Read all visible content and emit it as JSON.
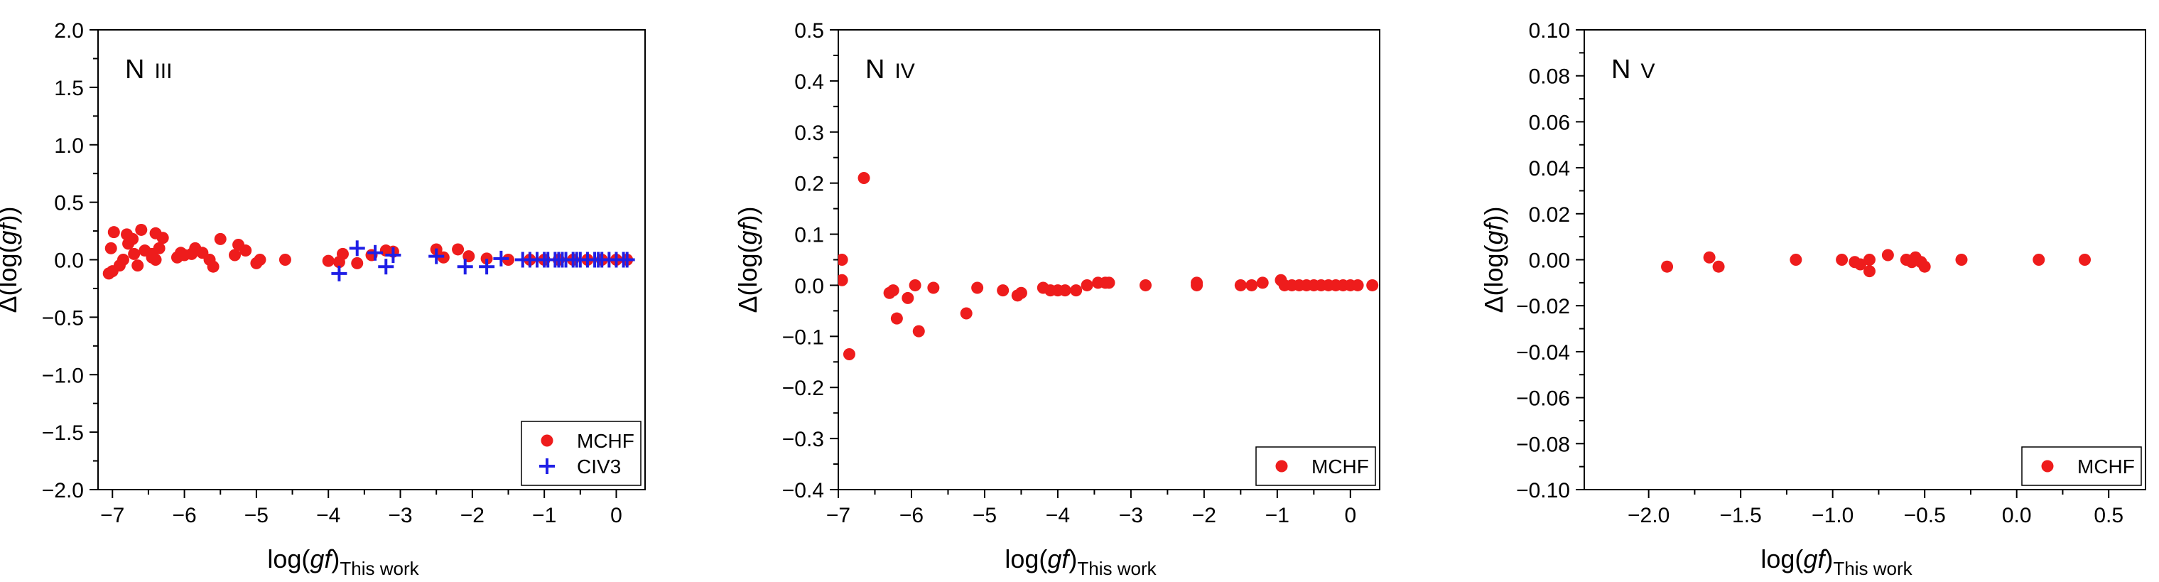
{
  "figure": {
    "ylabel_prefix": "Δ(log(",
    "ylabel_italic": "gf",
    "ylabel_suffix": "))",
    "xlabel_prefix": "log(",
    "xlabel_italic": "gf",
    "xlabel_suffix": ")",
    "xlabel_sub": "This work"
  },
  "chart_data": [
    {
      "type": "scatter",
      "title_main": "N",
      "title_sub": "III",
      "xlim": [
        -7.2,
        0.4
      ],
      "ylim": [
        -2.0,
        2.0
      ],
      "xticks": [
        -7,
        -6,
        -5,
        -4,
        -3,
        -2,
        -1,
        0
      ],
      "xtick_labels": [
        "−7",
        "−6",
        "−5",
        "−4",
        "−3",
        "−2",
        "−1",
        "0"
      ],
      "yticks": [
        -2.0,
        -1.5,
        -1.0,
        -0.5,
        0.0,
        0.5,
        1.0,
        1.5,
        2.0
      ],
      "ytick_labels": [
        "−2.0",
        "−1.5",
        "−1.0",
        "−0.5",
        "0.0",
        "0.5",
        "1.0",
        "1.5",
        "2.0"
      ],
      "legend_position": "bottom-right",
      "colors": {
        "MCHF": "#ee1c1c",
        "CIV3": "#1f1fe6"
      },
      "series": [
        {
          "name": "MCHF",
          "marker": "circle",
          "points": [
            [
              -7.05,
              -0.12
            ],
            [
              -7.0,
              -0.1
            ],
            [
              -7.02,
              0.1
            ],
            [
              -6.98,
              0.24
            ],
            [
              -6.9,
              -0.05
            ],
            [
              -6.85,
              0.0
            ],
            [
              -6.8,
              0.22
            ],
            [
              -6.78,
              0.14
            ],
            [
              -6.72,
              0.18
            ],
            [
              -6.7,
              0.05
            ],
            [
              -6.65,
              -0.05
            ],
            [
              -6.6,
              0.26
            ],
            [
              -6.55,
              0.08
            ],
            [
              -6.45,
              0.02
            ],
            [
              -6.45,
              0.05
            ],
            [
              -6.4,
              0.23
            ],
            [
              -6.4,
              0.0
            ],
            [
              -6.35,
              0.1
            ],
            [
              -6.3,
              0.19
            ],
            [
              -6.1,
              0.02
            ],
            [
              -6.05,
              0.06
            ],
            [
              -6.0,
              0.04
            ],
            [
              -5.9,
              0.05
            ],
            [
              -5.85,
              0.1
            ],
            [
              -5.75,
              0.06
            ],
            [
              -5.65,
              0.0
            ],
            [
              -5.6,
              -0.06
            ],
            [
              -5.5,
              0.18
            ],
            [
              -5.3,
              0.04
            ],
            [
              -5.25,
              0.13
            ],
            [
              -5.15,
              0.08
            ],
            [
              -5.0,
              -0.03
            ],
            [
              -4.95,
              0.0
            ],
            [
              -4.6,
              0.0
            ],
            [
              -4.0,
              -0.01
            ],
            [
              -3.85,
              -0.02
            ],
            [
              -3.8,
              0.05
            ],
            [
              -3.6,
              -0.03
            ],
            [
              -3.4,
              0.04
            ],
            [
              -3.2,
              0.08
            ],
            [
              -3.1,
              0.07
            ],
            [
              -2.5,
              0.09
            ],
            [
              -2.4,
              0.02
            ],
            [
              -2.2,
              0.09
            ],
            [
              -2.05,
              0.03
            ],
            [
              -1.8,
              0.01
            ],
            [
              -1.5,
              0.0
            ],
            [
              -1.2,
              0.0
            ],
            [
              -1.0,
              0.0
            ],
            [
              -0.8,
              0.0
            ],
            [
              -0.6,
              0.0
            ],
            [
              -0.4,
              0.0
            ],
            [
              -0.2,
              0.0
            ],
            [
              0.0,
              0.0
            ],
            [
              0.15,
              0.0
            ]
          ]
        },
        {
          "name": "CIV3",
          "marker": "plus",
          "points": [
            [
              -3.85,
              -0.12
            ],
            [
              -3.6,
              0.1
            ],
            [
              -3.35,
              0.06
            ],
            [
              -3.2,
              -0.06
            ],
            [
              -3.1,
              0.04
            ],
            [
              -2.5,
              0.03
            ],
            [
              -2.1,
              -0.06
            ],
            [
              -1.8,
              -0.06
            ],
            [
              -1.6,
              0.01
            ],
            [
              -1.3,
              0.0
            ],
            [
              -1.2,
              0.0
            ],
            [
              -1.1,
              0.0
            ],
            [
              -1.0,
              0.0
            ],
            [
              -0.95,
              0.0
            ],
            [
              -0.85,
              0.0
            ],
            [
              -0.8,
              0.0
            ],
            [
              -0.75,
              0.0
            ],
            [
              -0.7,
              0.0
            ],
            [
              -0.6,
              0.0
            ],
            [
              -0.55,
              0.0
            ],
            [
              -0.5,
              0.0
            ],
            [
              -0.4,
              0.0
            ],
            [
              -0.3,
              0.0
            ],
            [
              -0.25,
              0.0
            ],
            [
              -0.2,
              0.0
            ],
            [
              -0.1,
              0.0
            ],
            [
              0.0,
              0.0
            ],
            [
              0.1,
              0.0
            ],
            [
              0.15,
              0.0
            ]
          ]
        }
      ]
    },
    {
      "type": "scatter",
      "title_main": "N",
      "title_sub": "IV",
      "xlim": [
        -7.0,
        0.4
      ],
      "ylim": [
        -0.4,
        0.5
      ],
      "xticks": [
        -7,
        -6,
        -5,
        -4,
        -3,
        -2,
        -1,
        0
      ],
      "xtick_labels": [
        "−7",
        "−6",
        "−5",
        "−4",
        "−3",
        "−2",
        "−1",
        "0"
      ],
      "yticks": [
        -0.4,
        -0.3,
        -0.2,
        -0.1,
        0.0,
        0.1,
        0.2,
        0.3,
        0.4,
        0.5
      ],
      "ytick_labels": [
        "−0.4",
        "−0.3",
        "−0.2",
        "−0.1",
        "0.0",
        "0.1",
        "0.2",
        "0.3",
        "0.4",
        "0.5"
      ],
      "legend_position": "bottom-right",
      "colors": {
        "MCHF": "#ee1c1c"
      },
      "series": [
        {
          "name": "MCHF",
          "marker": "circle",
          "points": [
            [
              -6.95,
              0.05
            ],
            [
              -6.95,
              0.01
            ],
            [
              -6.85,
              -0.135
            ],
            [
              -6.65,
              0.21
            ],
            [
              -6.3,
              -0.015
            ],
            [
              -6.25,
              -0.01
            ],
            [
              -6.2,
              -0.065
            ],
            [
              -6.05,
              -0.025
            ],
            [
              -5.95,
              0.0
            ],
            [
              -5.9,
              -0.09
            ],
            [
              -5.7,
              -0.005
            ],
            [
              -5.25,
              -0.055
            ],
            [
              -5.1,
              -0.005
            ],
            [
              -4.75,
              -0.01
            ],
            [
              -4.55,
              -0.02
            ],
            [
              -4.5,
              -0.015
            ],
            [
              -4.2,
              -0.005
            ],
            [
              -4.1,
              -0.01
            ],
            [
              -4.0,
              -0.01
            ],
            [
              -3.9,
              -0.01
            ],
            [
              -3.75,
              -0.01
            ],
            [
              -3.6,
              0.0
            ],
            [
              -3.45,
              0.005
            ],
            [
              -3.35,
              0.005
            ],
            [
              -3.3,
              0.005
            ],
            [
              -2.8,
              0.0
            ],
            [
              -2.1,
              0.0
            ],
            [
              -2.1,
              0.005
            ],
            [
              -1.5,
              0.0
            ],
            [
              -1.35,
              0.0
            ],
            [
              -1.2,
              0.005
            ],
            [
              -0.95,
              0.01
            ],
            [
              -0.9,
              0.0
            ],
            [
              -0.8,
              0.0
            ],
            [
              -0.7,
              0.0
            ],
            [
              -0.6,
              0.0
            ],
            [
              -0.5,
              0.0
            ],
            [
              -0.4,
              0.0
            ],
            [
              -0.3,
              0.0
            ],
            [
              -0.2,
              0.0
            ],
            [
              -0.1,
              0.0
            ],
            [
              0.0,
              0.0
            ],
            [
              0.1,
              0.0
            ],
            [
              0.3,
              0.0
            ]
          ]
        }
      ]
    },
    {
      "type": "scatter",
      "title_main": "N",
      "title_sub": "V",
      "xlim": [
        -2.35,
        0.7
      ],
      "ylim": [
        -0.1,
        0.1
      ],
      "xticks": [
        -2.0,
        -1.5,
        -1.0,
        -0.5,
        0.0,
        0.5
      ],
      "xtick_labels": [
        "−2.0",
        "−1.5",
        "−1.0",
        "−0.5",
        "0.0",
        "0.5"
      ],
      "yticks": [
        -0.1,
        -0.08,
        -0.06,
        -0.04,
        -0.02,
        0.0,
        0.02,
        0.04,
        0.06,
        0.08,
        0.1
      ],
      "ytick_labels": [
        "−0.10",
        "−0.08",
        "−0.06",
        "−0.04",
        "−0.02",
        "0.00",
        "0.02",
        "0.04",
        "0.06",
        "0.08",
        "0.10"
      ],
      "legend_position": "bottom-right",
      "colors": {
        "MCHF": "#ee1c1c"
      },
      "series": [
        {
          "name": "MCHF",
          "marker": "circle",
          "points": [
            [
              -1.9,
              -0.003
            ],
            [
              -1.67,
              0.001
            ],
            [
              -1.62,
              -0.003
            ],
            [
              -1.2,
              0.0
            ],
            [
              -0.95,
              0.0
            ],
            [
              -0.88,
              -0.001
            ],
            [
              -0.85,
              -0.002
            ],
            [
              -0.8,
              0.0
            ],
            [
              -0.8,
              -0.005
            ],
            [
              -0.7,
              0.002
            ],
            [
              -0.6,
              0.0
            ],
            [
              -0.57,
              -0.001
            ],
            [
              -0.55,
              0.001
            ],
            [
              -0.52,
              -0.001
            ],
            [
              -0.5,
              -0.003
            ],
            [
              -0.3,
              0.0
            ],
            [
              0.12,
              0.0
            ],
            [
              0.37,
              0.0
            ]
          ]
        }
      ]
    }
  ]
}
